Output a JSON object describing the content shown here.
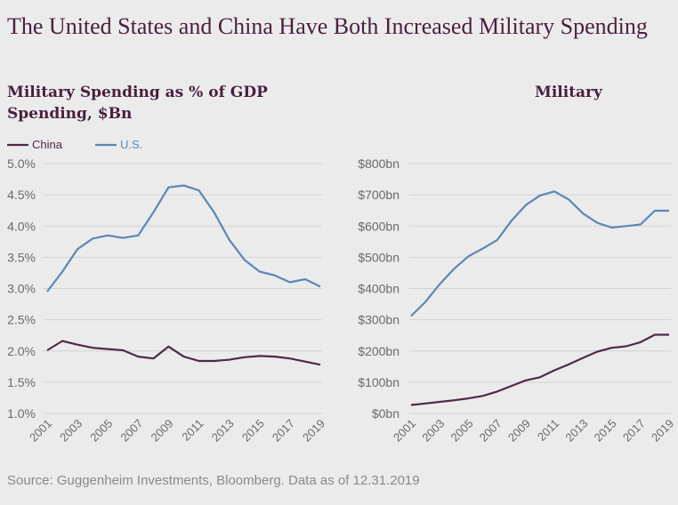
{
  "title": "The United States and China Have Both Increased Military Spending",
  "source": "Source: Guggenheim Investments, Bloomberg. Data as of 12.31.2019",
  "colors": {
    "china": "#4e2a45",
    "us": "#5b87b5",
    "grid": "#d3d3d3",
    "tick": "#6a6a6a"
  },
  "chart_data": [
    {
      "type": "line",
      "title": "Military Spending as % of GDP",
      "legend": [
        "China",
        "U.S."
      ],
      "legend_position": "top-left",
      "x": [
        2001,
        2002,
        2003,
        2004,
        2005,
        2006,
        2007,
        2008,
        2009,
        2010,
        2011,
        2012,
        2013,
        2014,
        2015,
        2016,
        2017,
        2018,
        2019
      ],
      "xtick_labels": [
        "2001",
        "2003",
        "2005",
        "2007",
        "2009",
        "2011",
        "2013",
        "2015",
        "2017",
        "2019"
      ],
      "ylim": [
        1.0,
        5.0
      ],
      "ytick_labels": [
        "5.0%",
        "4.5%",
        "4.0%",
        "3.5%",
        "3.0%",
        "2.5%",
        "2.0%",
        "1.5%",
        "1.0%"
      ],
      "yticks": [
        5.0,
        4.5,
        4.0,
        3.5,
        3.0,
        2.5,
        2.0,
        1.5,
        1.0
      ],
      "grid": true,
      "series": [
        {
          "name": "China",
          "values": [
            2.01,
            2.16,
            2.1,
            2.05,
            2.03,
            2.01,
            1.91,
            1.88,
            2.07,
            1.91,
            1.84,
            1.84,
            1.86,
            1.9,
            1.92,
            1.91,
            1.88,
            1.83,
            1.78
          ]
        },
        {
          "name": "U.S.",
          "values": [
            2.95,
            3.27,
            3.63,
            3.8,
            3.85,
            3.81,
            3.85,
            4.22,
            4.62,
            4.65,
            4.57,
            4.22,
            3.78,
            3.46,
            3.27,
            3.21,
            3.1,
            3.15,
            3.03
          ]
        }
      ]
    },
    {
      "type": "line",
      "title": "Military Spending, $Bn",
      "x": [
        2001,
        2002,
        2003,
        2004,
        2005,
        2006,
        2007,
        2008,
        2009,
        2010,
        2011,
        2012,
        2013,
        2014,
        2015,
        2016,
        2017,
        2018,
        2019
      ],
      "xtick_labels": [
        "2001",
        "2003",
        "2005",
        "2007",
        "2009",
        "2011",
        "2013",
        "2015",
        "2017",
        "2019"
      ],
      "ylim": [
        0,
        800
      ],
      "ytick_labels": [
        "$800bn",
        "$700bn",
        "$600bn",
        "$500bn",
        "$400bn",
        "$300bn",
        "$200bn",
        "$100bn",
        "$0bn"
      ],
      "yticks": [
        800,
        700,
        600,
        500,
        400,
        300,
        200,
        100,
        0
      ],
      "grid": true,
      "series": [
        {
          "name": "China",
          "values": [
            27,
            32,
            37,
            42,
            48,
            56,
            70,
            88,
            106,
            116,
            138,
            157,
            178,
            198,
            210,
            215,
            228,
            252,
            252
          ]
        },
        {
          "name": "U.S.",
          "values": [
            312,
            357,
            414,
            463,
            503,
            528,
            555,
            617,
            667,
            698,
            711,
            685,
            640,
            610,
            595,
            600,
            605,
            649,
            649
          ]
        }
      ]
    }
  ],
  "subtitle_lines": {
    "left_line1": "Military Spending as % of GDP",
    "right_line1": "Military",
    "left_line2": "Spending, $Bn"
  }
}
